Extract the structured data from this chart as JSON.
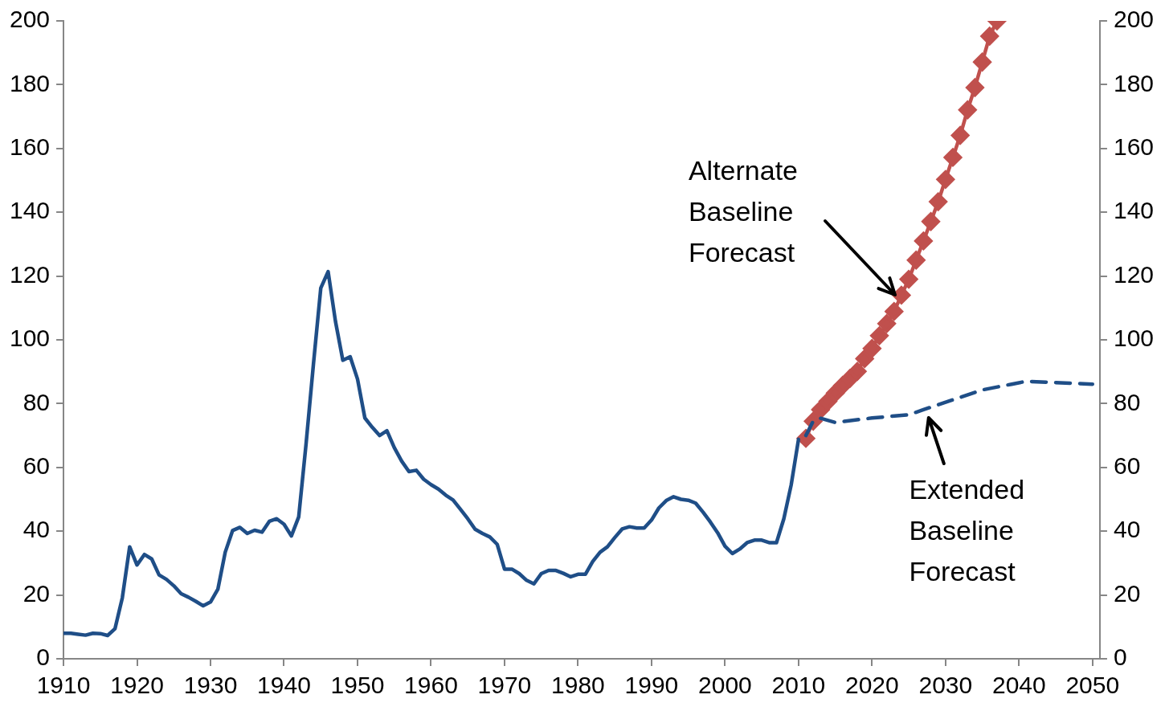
{
  "chart_data": {
    "type": "line",
    "xlim": [
      1910,
      2051
    ],
    "xticks": [
      1910,
      1920,
      1930,
      1940,
      1950,
      1960,
      1970,
      1980,
      1990,
      2000,
      2010,
      2020,
      2030,
      2040,
      2050
    ],
    "ylim": [
      0,
      200
    ],
    "yticks": [
      0,
      20,
      40,
      60,
      80,
      100,
      120,
      140,
      160,
      180,
      200
    ],
    "y2lim": [
      0,
      200
    ],
    "y2ticks": [
      0,
      20,
      40,
      60,
      80,
      100,
      120,
      140,
      160,
      180,
      200
    ],
    "series": [
      {
        "type": "line",
        "color": "#1f4e87",
        "marker": "none",
        "line_style": "solid",
        "x": [
          1910,
          1911,
          1912,
          1913,
          1914,
          1915,
          1916,
          1917,
          1918,
          1919,
          1920,
          1921,
          1922,
          1923,
          1924,
          1925,
          1926,
          1927,
          1928,
          1929,
          1930,
          1931,
          1932,
          1933,
          1934,
          1935,
          1936,
          1937,
          1938,
          1939,
          1940,
          1941,
          1942,
          1943,
          1944,
          1945,
          1946,
          1947,
          1948,
          1949,
          1950,
          1951,
          1952,
          1953,
          1954,
          1955,
          1956,
          1957,
          1958,
          1959,
          1960,
          1961,
          1962,
          1963,
          1964,
          1965,
          1966,
          1967,
          1968,
          1969,
          1970,
          1971,
          1972,
          1973,
          1974,
          1975,
          1976,
          1977,
          1978,
          1979,
          1980,
          1981,
          1982,
          1983,
          1984,
          1985,
          1986,
          1987,
          1988,
          1989,
          1990,
          1991,
          1992,
          1993,
          1994,
          1995,
          1996,
          1997,
          1998,
          1999,
          2000,
          2001,
          2002,
          2003,
          2004,
          2005,
          2006,
          2007,
          2008,
          2009,
          2010
        ],
        "values": [
          8,
          8,
          7.7,
          7.4,
          8,
          7.9,
          7.3,
          9.4,
          19.1,
          35.1,
          29.4,
          32.7,
          31.3,
          26.3,
          24.9,
          22.9,
          20.4,
          19.3,
          18,
          16.6,
          17.8,
          21.8,
          33.4,
          40.2,
          41.2,
          39.3,
          40.3,
          39.7,
          43.1,
          43.9,
          42.2,
          38.5,
          44.5,
          67.4,
          92.3,
          116.2,
          121.4,
          105.8,
          93.6,
          94.7,
          87.7,
          75.5,
          72.6,
          70,
          71.5,
          66.2,
          62,
          58.7,
          59.1,
          56.3,
          54.6,
          53.2,
          51.3,
          49.8,
          46.9,
          43.9,
          40.6,
          39.3,
          38.2,
          35.9,
          28.1,
          28.1,
          26.7,
          24.6,
          23.5,
          26.7,
          27.7,
          27.7,
          26.8,
          25.7,
          26.5,
          26.5,
          30.5,
          33.4,
          35.1,
          38,
          40.7,
          41.4,
          41,
          41,
          43.5,
          47.3,
          49.6,
          50.8,
          50,
          49.7,
          48.8,
          46,
          42.9,
          39.5,
          35.3,
          33,
          34.4,
          36.4,
          37.2,
          37.2,
          36.4,
          36.4,
          43.9,
          54.5,
          68.8
        ]
      },
      {
        "type": "line",
        "color": "#1f4e87",
        "marker": "none",
        "line_style": "dashed",
        "x": [
          2011,
          2012,
          2013,
          2015,
          2020,
          2025,
          2027,
          2031,
          2035,
          2039,
          2041,
          2050
        ],
        "values": [
          70,
          74.5,
          75.4,
          74.1,
          75.5,
          76.5,
          78.1,
          81.2,
          84.3,
          86.1,
          87,
          86.1
        ]
      },
      {
        "type": "line",
        "color": "#c0504d",
        "marker": "diamond",
        "line_style": "solid",
        "x": [
          2011,
          2012,
          2013,
          2014,
          2015,
          2016,
          2017,
          2018,
          2019,
          2020,
          2021,
          2022,
          2023,
          2024,
          2025,
          2026,
          2027,
          2028,
          2029,
          2030,
          2031,
          2032,
          2033,
          2034,
          2035,
          2036,
          2037
        ],
        "values": [
          69.1,
          74.5,
          78.1,
          80.7,
          83.3,
          85.7,
          87.9,
          90.1,
          94.1,
          97.3,
          101.3,
          105.1,
          108.9,
          114,
          119,
          125,
          131,
          137.1,
          143.3,
          150.3,
          157.2,
          164.1,
          172.1,
          179.1,
          187.1,
          195.2,
          200
        ]
      }
    ],
    "annotations": [
      {
        "text": "Alternate Baseline Forecast",
        "x": 2024,
        "y": 114
      },
      {
        "text": "Extended Baseline Forecast",
        "x": 2027,
        "y": 78.1
      }
    ]
  }
}
